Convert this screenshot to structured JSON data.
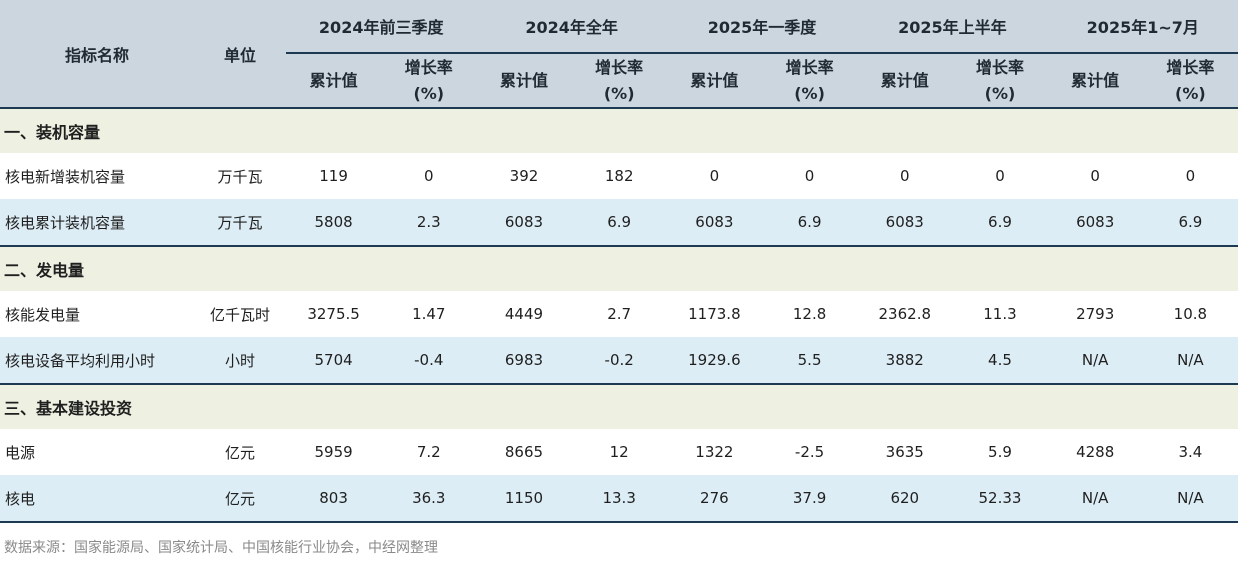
{
  "header": {
    "name_label": "指标名称",
    "unit_label": "单位",
    "periods": [
      "2024年前三季度",
      "2024年全年",
      "2025年一季度",
      "2025年上半年",
      "2025年1~7月"
    ],
    "cum_label": "累计值",
    "growth_label_line1": "增长率",
    "growth_label_line2": "(%)"
  },
  "sections": [
    {
      "title": "一、装机容量",
      "rows": [
        {
          "name": "核电新增装机容量",
          "unit": "万千瓦",
          "values": [
            "119",
            "0",
            "392",
            "182",
            "0",
            "0",
            "0",
            "0",
            "0",
            "0"
          ]
        },
        {
          "name": "核电累计装机容量",
          "unit": "万千瓦",
          "values": [
            "5808",
            "2.3",
            "6083",
            "6.9",
            "6083",
            "6.9",
            "6083",
            "6.9",
            "6083",
            "6.9"
          ]
        }
      ]
    },
    {
      "title": "二、发电量",
      "rows": [
        {
          "name": "核能发电量",
          "unit": "亿千瓦时",
          "values": [
            "3275.5",
            "1.47",
            "4449",
            "2.7",
            "1173.8",
            "12.8",
            "2362.8",
            "11.3",
            "2793",
            "10.8"
          ]
        },
        {
          "name": "核电设备平均利用小时",
          "unit": "小时",
          "values": [
            "5704",
            "-0.4",
            "6983",
            "-0.2",
            "1929.6",
            "5.5",
            "3882",
            "4.5",
            "N/A",
            "N/A"
          ]
        }
      ]
    },
    {
      "title": "三、基本建设投资",
      "rows": [
        {
          "name": "电源",
          "unit": "亿元",
          "values": [
            "5959",
            "7.2",
            "8665",
            "12",
            "1322",
            "-2.5",
            "3635",
            "5.9",
            "4288",
            "3.4"
          ]
        },
        {
          "name": "核电",
          "unit": "亿元",
          "values": [
            "803",
            "36.3",
            "1150",
            "13.3",
            "276",
            "37.9",
            "620",
            "52.33",
            "N/A",
            "N/A"
          ]
        }
      ]
    }
  ],
  "source": "数据来源：国家能源局、国家统计局、中国核能行业协会，中经网整理",
  "colors": {
    "header_bg": "#ccd6de",
    "section_bg": "#eef1e2",
    "row_alt_bg": "#dcedf5",
    "rule": "#1e3a52"
  }
}
